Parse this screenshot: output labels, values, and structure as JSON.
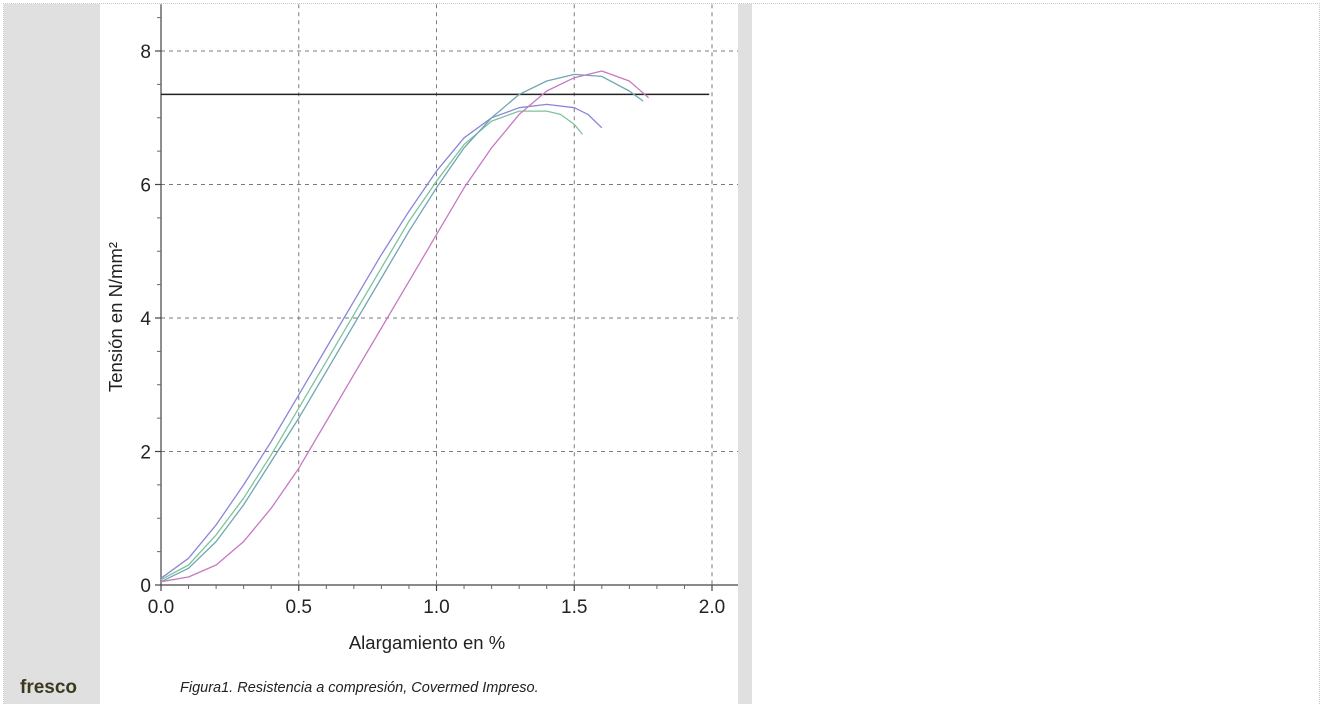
{
  "side_text": "fresco",
  "caption": "Figura1. Resistencia a compresión, Covermed Impreso.",
  "chart_data": {
    "type": "line",
    "xlabel": "Alargamiento en %",
    "ylabel": "Tensión en N/mm²",
    "xlim": [
      0,
      2.1
    ],
    "ylim": [
      0,
      8.7
    ],
    "xticks": [
      "0.0",
      "0.5",
      "1.0",
      "1.5",
      "2.0"
    ],
    "yticks": [
      "0",
      "2",
      "4",
      "6",
      "8"
    ],
    "grid": true,
    "reference_line": {
      "y": 7.35,
      "x_range": [
        0,
        1.99
      ],
      "color": "#222222"
    },
    "series": [
      {
        "color": "#8a86d8",
        "points": [
          [
            0,
            0.1
          ],
          [
            0.1,
            0.4
          ],
          [
            0.2,
            0.9
          ],
          [
            0.3,
            1.5
          ],
          [
            0.4,
            2.15
          ],
          [
            0.5,
            2.85
          ],
          [
            0.6,
            3.55
          ],
          [
            0.7,
            4.25
          ],
          [
            0.8,
            4.95
          ],
          [
            0.9,
            5.6
          ],
          [
            1.0,
            6.2
          ],
          [
            1.1,
            6.7
          ],
          [
            1.2,
            7.0
          ],
          [
            1.3,
            7.15
          ],
          [
            1.4,
            7.2
          ],
          [
            1.5,
            7.15
          ],
          [
            1.55,
            7.05
          ],
          [
            1.6,
            6.85
          ]
        ]
      },
      {
        "color": "#7cc49a",
        "points": [
          [
            0,
            0.08
          ],
          [
            0.1,
            0.3
          ],
          [
            0.2,
            0.75
          ],
          [
            0.3,
            1.3
          ],
          [
            0.4,
            1.95
          ],
          [
            0.5,
            2.65
          ],
          [
            0.6,
            3.35
          ],
          [
            0.7,
            4.05
          ],
          [
            0.8,
            4.75
          ],
          [
            0.9,
            5.45
          ],
          [
            1.0,
            6.05
          ],
          [
            1.1,
            6.6
          ],
          [
            1.2,
            6.95
          ],
          [
            1.3,
            7.1
          ],
          [
            1.4,
            7.1
          ],
          [
            1.45,
            7.05
          ],
          [
            1.5,
            6.9
          ],
          [
            1.53,
            6.75
          ]
        ]
      },
      {
        "color": "#6fa6b4",
        "points": [
          [
            0,
            0.05
          ],
          [
            0.1,
            0.25
          ],
          [
            0.2,
            0.65
          ],
          [
            0.3,
            1.2
          ],
          [
            0.4,
            1.85
          ],
          [
            0.5,
            2.5
          ],
          [
            0.6,
            3.2
          ],
          [
            0.7,
            3.9
          ],
          [
            0.8,
            4.6
          ],
          [
            0.9,
            5.3
          ],
          [
            1.0,
            5.95
          ],
          [
            1.1,
            6.55
          ],
          [
            1.2,
            7.0
          ],
          [
            1.3,
            7.35
          ],
          [
            1.4,
            7.55
          ],
          [
            1.5,
            7.65
          ],
          [
            1.6,
            7.62
          ],
          [
            1.7,
            7.4
          ],
          [
            1.75,
            7.25
          ]
        ]
      },
      {
        "color": "#c779c4",
        "points": [
          [
            0,
            0.05
          ],
          [
            0.1,
            0.12
          ],
          [
            0.2,
            0.3
          ],
          [
            0.3,
            0.65
          ],
          [
            0.4,
            1.15
          ],
          [
            0.5,
            1.75
          ],
          [
            0.6,
            2.45
          ],
          [
            0.7,
            3.15
          ],
          [
            0.8,
            3.85
          ],
          [
            0.9,
            4.55
          ],
          [
            1.0,
            5.25
          ],
          [
            1.1,
            5.95
          ],
          [
            1.2,
            6.55
          ],
          [
            1.3,
            7.05
          ],
          [
            1.4,
            7.4
          ],
          [
            1.5,
            7.6
          ],
          [
            1.6,
            7.7
          ],
          [
            1.7,
            7.55
          ],
          [
            1.77,
            7.3
          ]
        ]
      }
    ]
  }
}
